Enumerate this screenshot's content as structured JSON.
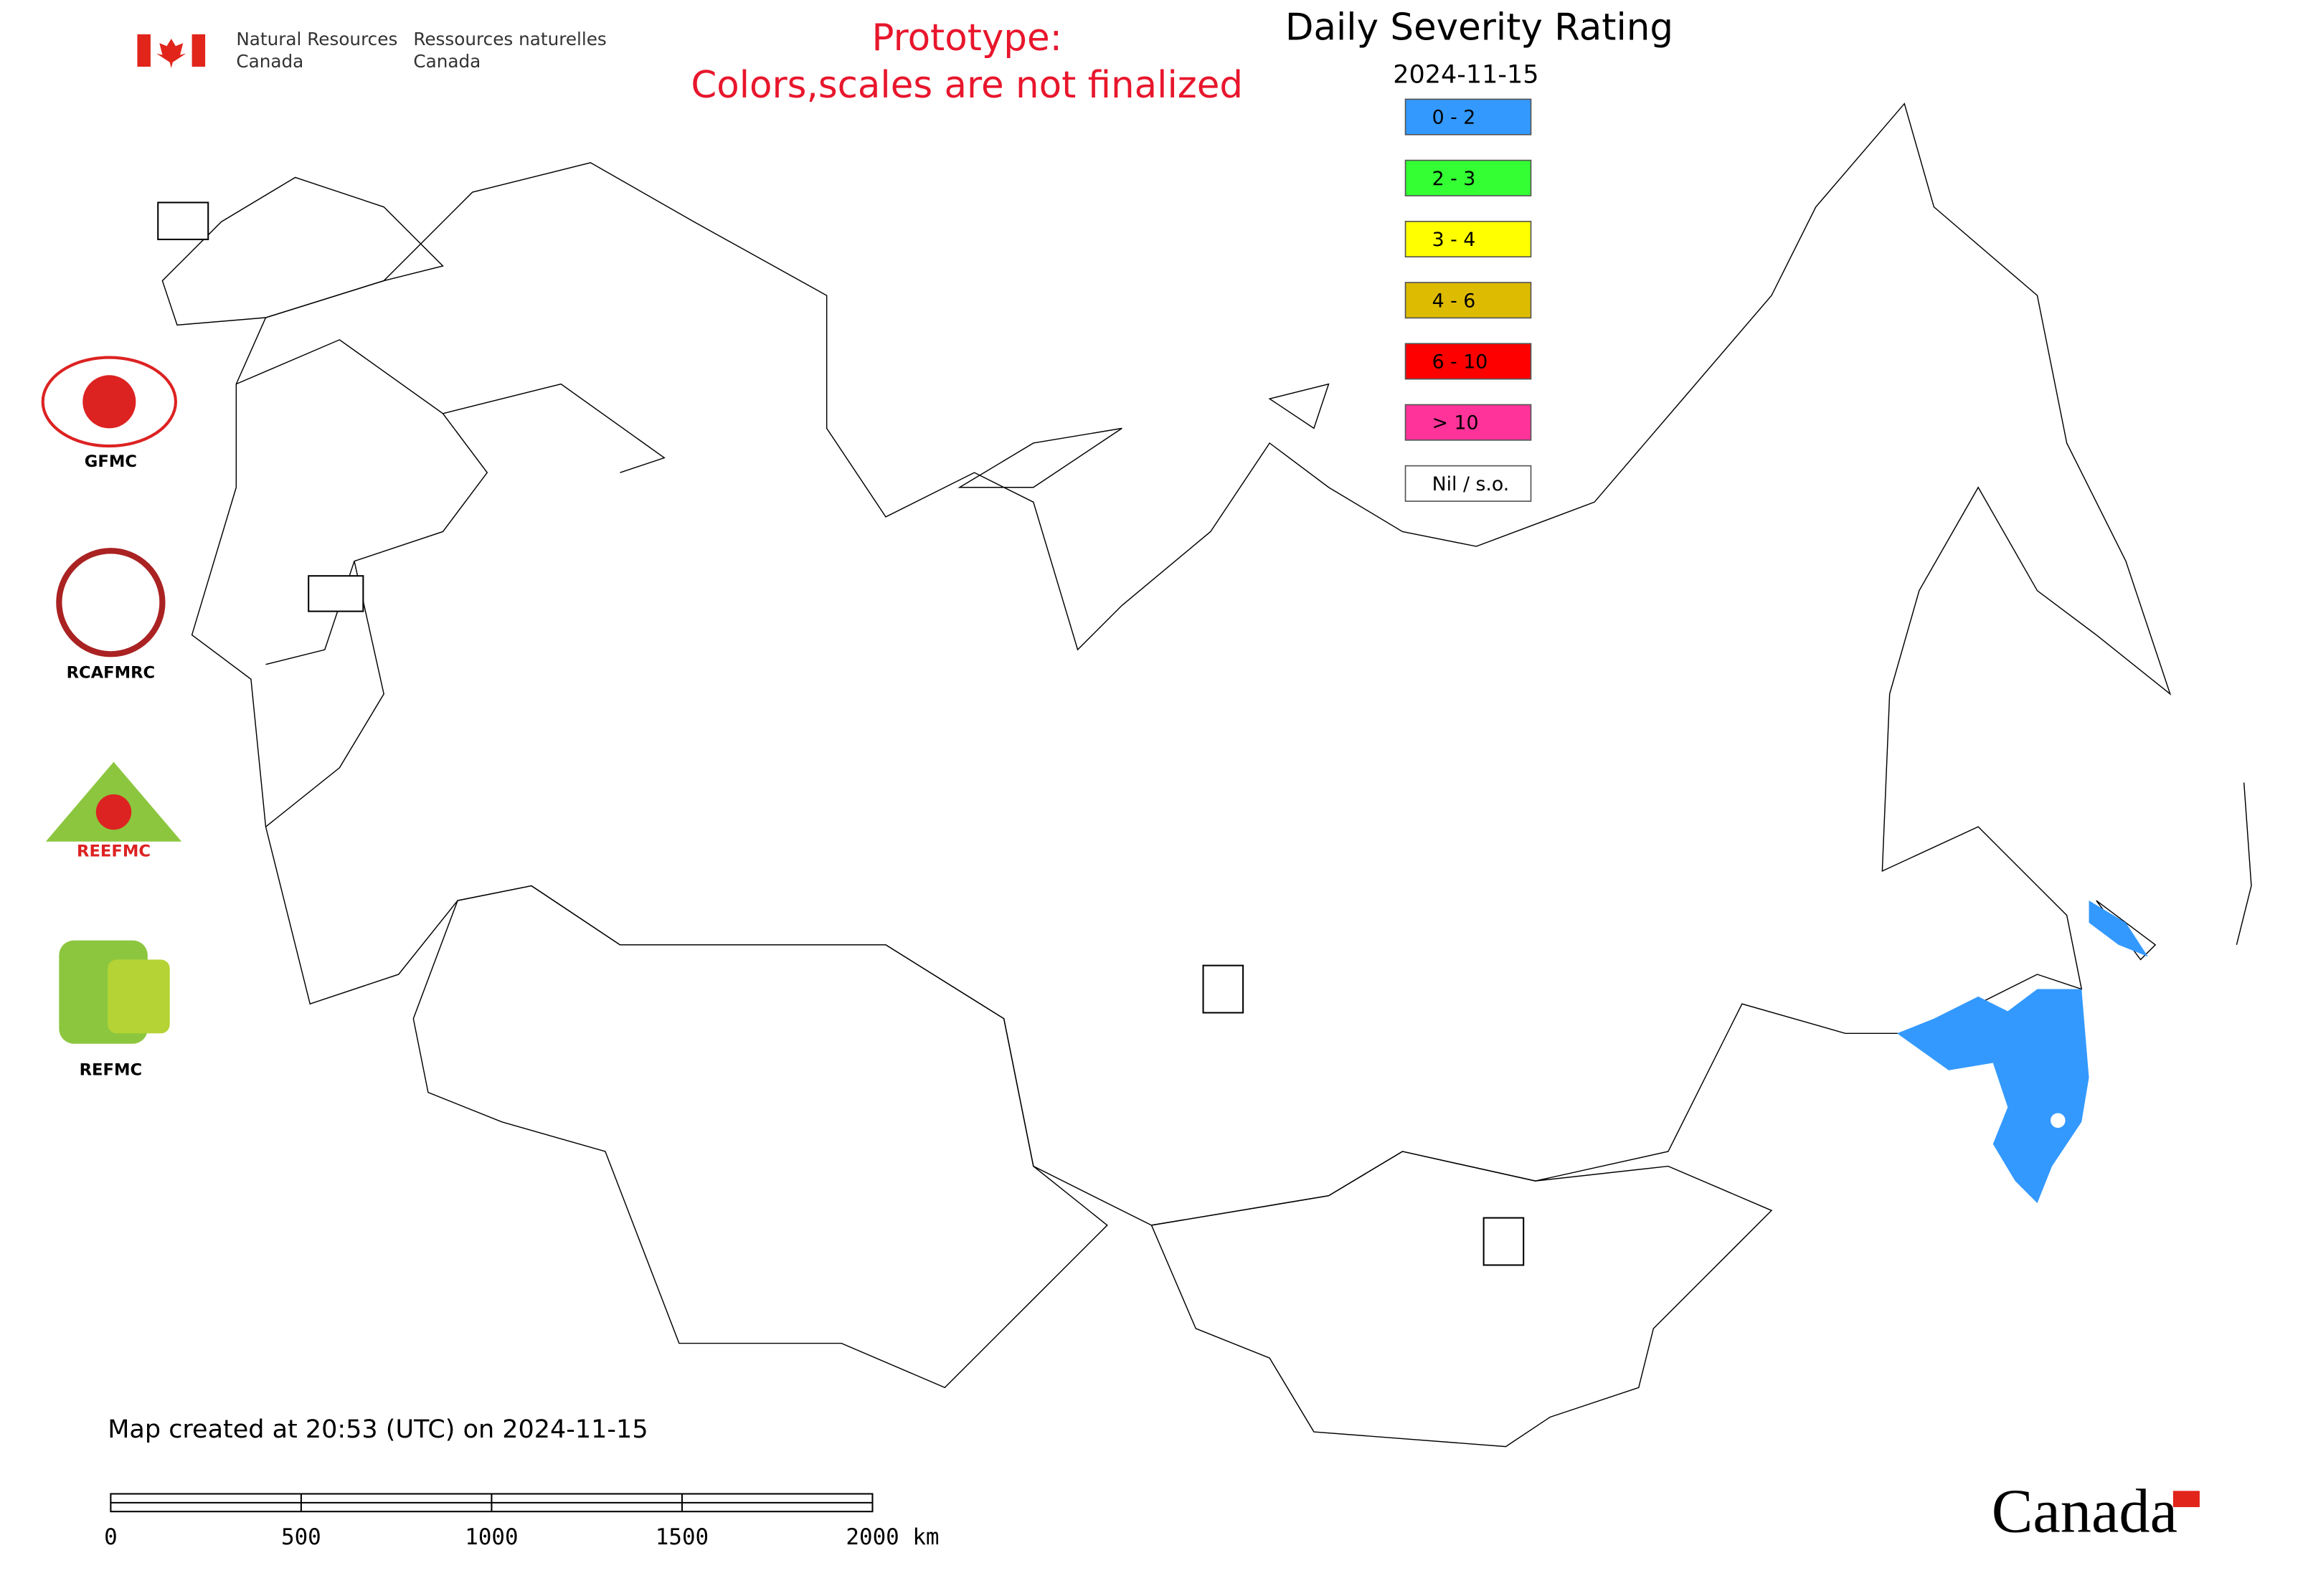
{
  "header": {
    "en": [
      "Natural Resources",
      "Canada"
    ],
    "fr": [
      "Ressources naturelles",
      "Canada"
    ]
  },
  "prototype": [
    "Prototype:",
    "Colors,scales are not finalized"
  ],
  "title": "Daily Severity Rating",
  "date": "2024-11-15",
  "legend": [
    {
      "label": "0 - 2",
      "color": "#3399ff"
    },
    {
      "label": "2 - 3",
      "color": "#33ff33"
    },
    {
      "label": "3 - 4",
      "color": "#ffff00"
    },
    {
      "label": "4 - 6",
      "color": "#ddbb00"
    },
    {
      "label": "6 - 10",
      "color": "#ff0000"
    },
    {
      "label": "> 10",
      "color": "#ff3399"
    },
    {
      "label": "Nil / s.o.",
      "color": "#ffffff"
    }
  ],
  "logos": [
    "GFMC",
    "RCAFMRC",
    "REEFMC",
    "REFMC"
  ],
  "footer": "Map created at 20:53 (UTC) on 2024-11-15",
  "scale_bar": [
    "0",
    "500",
    "1000",
    "1500",
    "2000 km"
  ],
  "wordmark": "Canada"
}
